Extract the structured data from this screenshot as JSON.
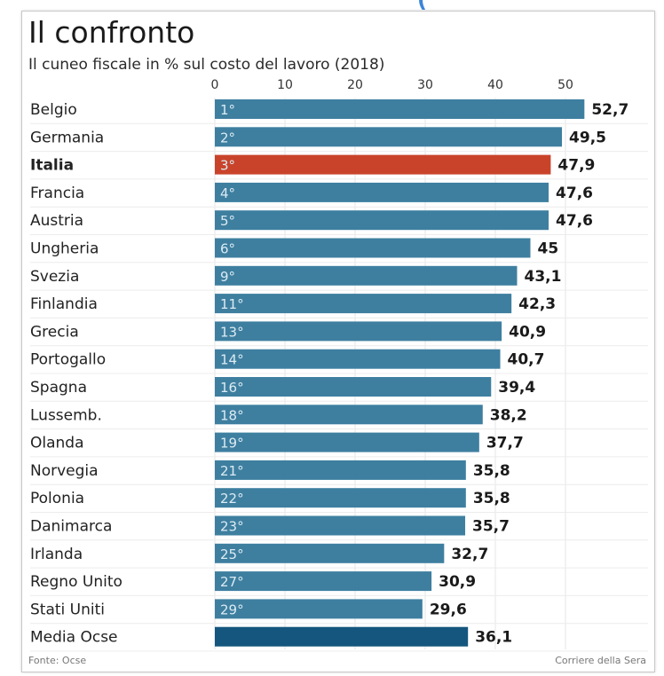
{
  "header_fragment": "(",
  "chart_data": {
    "type": "bar",
    "orientation": "horizontal",
    "title": "Il confronto",
    "subtitle": "Il cuneo fiscale in % sul costo del lavoro (2018)",
    "xlim": [
      0,
      50
    ],
    "xticks": [
      "0",
      "10",
      "20",
      "30",
      "40",
      "50"
    ],
    "categories": [
      "Belgio",
      "Germania",
      "Italia",
      "Francia",
      "Austria",
      "Ungheria",
      "Svezia",
      "Finlandia",
      "Grecia",
      "Portogallo",
      "Spagna",
      "Lussemb.",
      "Olanda",
      "Norvegia",
      "Polonia",
      "Danimarca",
      "Irlanda",
      "Regno Unito",
      "Stati Uniti",
      "Media Ocse"
    ],
    "ranks": [
      "1°",
      "2°",
      "3°",
      "4°",
      "5°",
      "6°",
      "9°",
      "11°",
      "13°",
      "14°",
      "16°",
      "18°",
      "19°",
      "21°",
      "22°",
      "23°",
      "25°",
      "27°",
      "29°",
      ""
    ],
    "values": [
      52.7,
      49.5,
      47.9,
      47.6,
      47.6,
      45,
      43.1,
      42.3,
      40.9,
      40.7,
      39.4,
      38.2,
      37.7,
      35.8,
      35.8,
      35.7,
      32.7,
      30.9,
      29.6,
      36.1
    ],
    "value_labels": [
      "52,7",
      "49,5",
      "47,9",
      "47,6",
      "47,6",
      "45",
      "43,1",
      "42,3",
      "40,9",
      "40,7",
      "39,4",
      "38,2",
      "37,7",
      "35,8",
      "35,8",
      "35,7",
      "32,7",
      "30,9",
      "29,6",
      "36,1"
    ],
    "highlight_category": "Italia",
    "average_category": "Media Ocse",
    "colors": {
      "bar": "#3e7fa0",
      "highlight": "#c9432b",
      "average": "#14567e",
      "rank_text": "#dcebf3",
      "label": "#222222"
    },
    "grid": true
  },
  "footer": {
    "source": "Fonte: Ocse",
    "publisher": "Corriere della Sera"
  }
}
